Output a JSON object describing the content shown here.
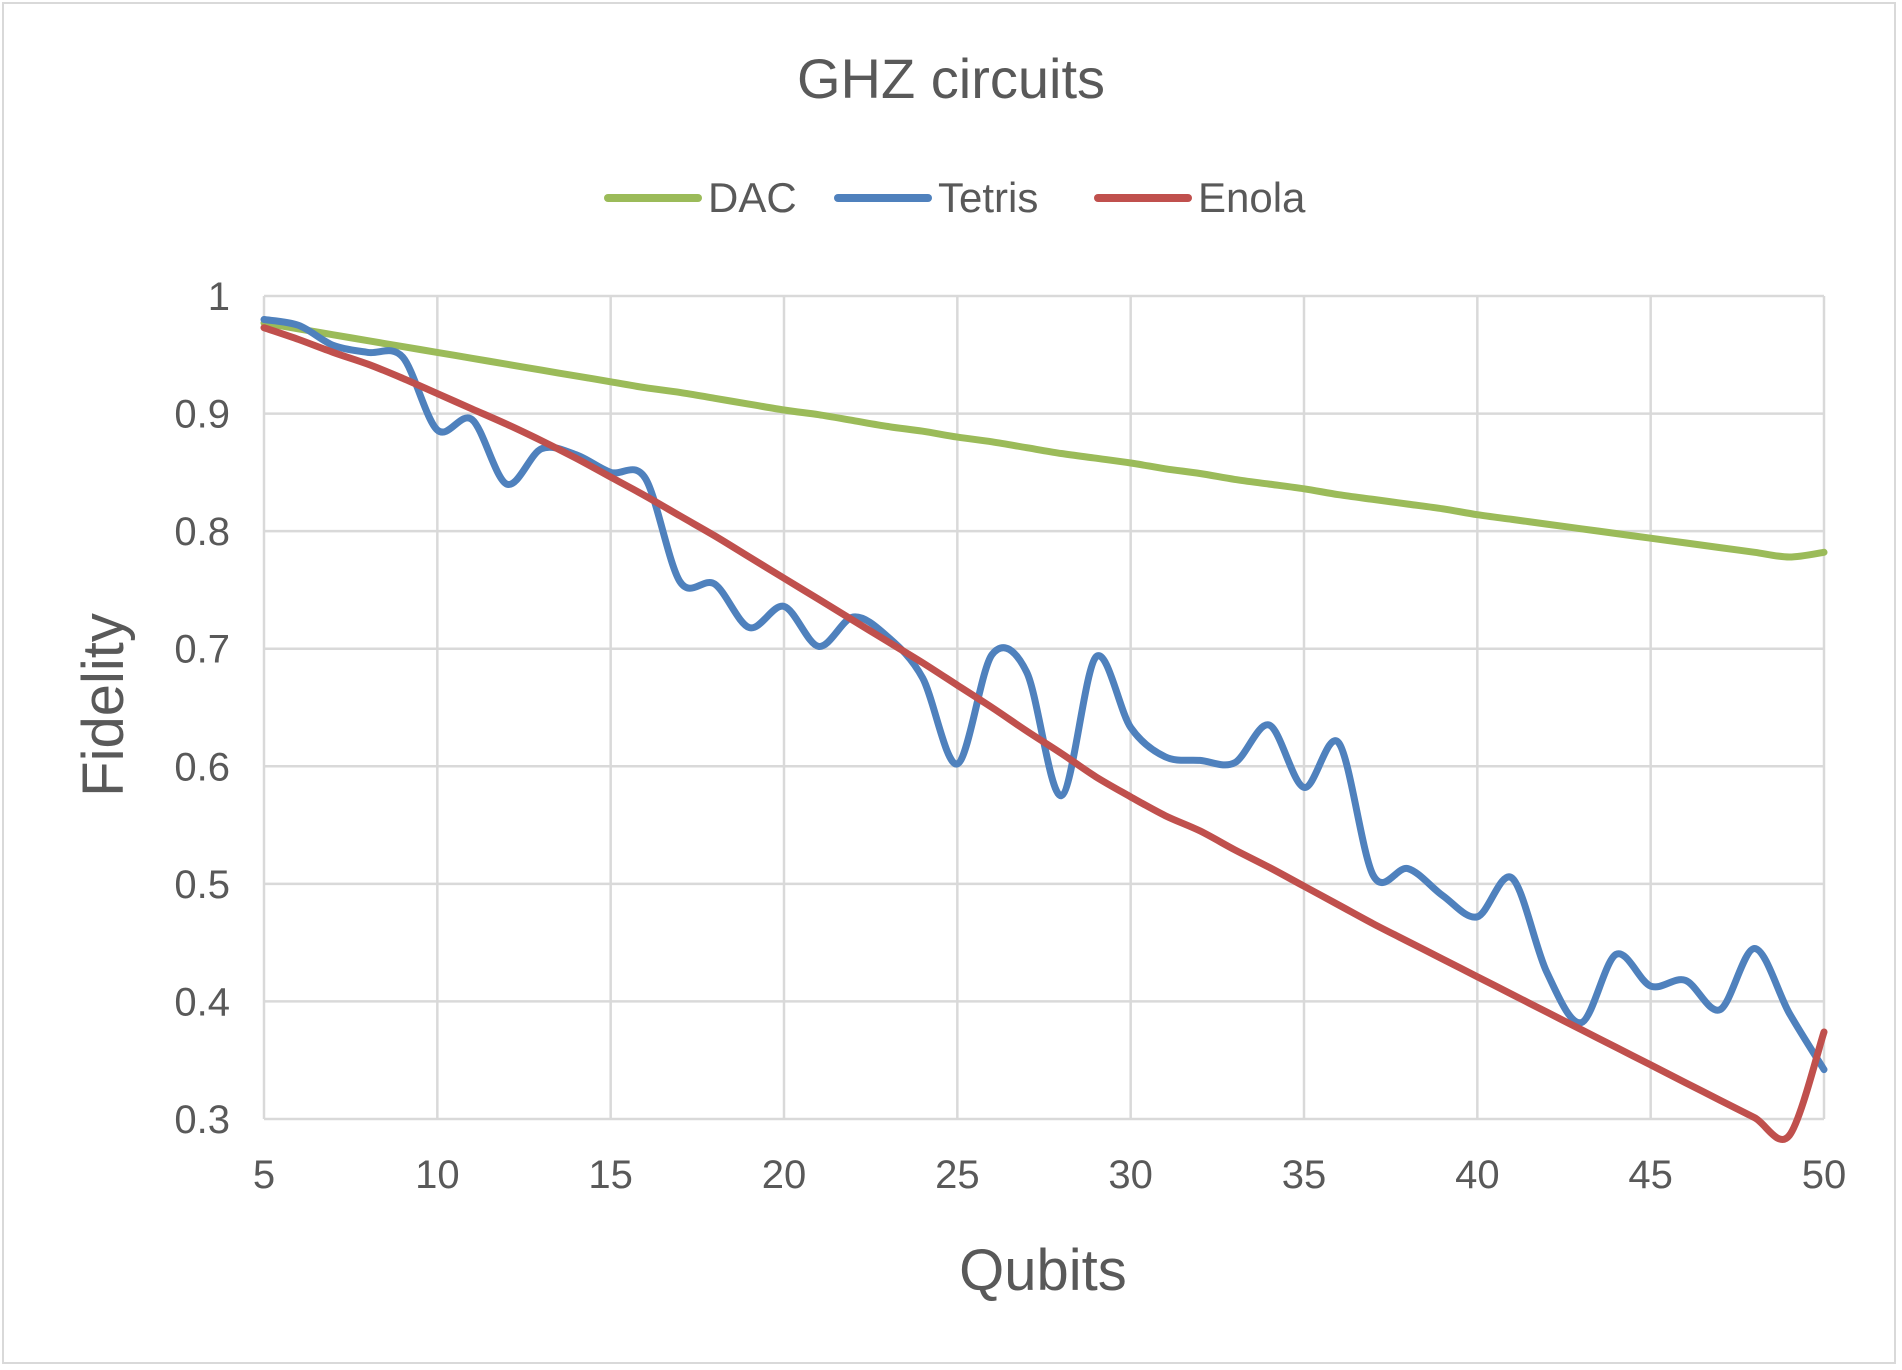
{
  "chart_data": {
    "type": "line",
    "title": "GHZ circuits",
    "xlabel": "Qubits",
    "ylabel": "Fidelity",
    "xlim": [
      5,
      50
    ],
    "ylim": [
      0.3,
      1
    ],
    "x_ticks": [
      "5",
      "10",
      "15",
      "20",
      "25",
      "30",
      "35",
      "40",
      "45",
      "50"
    ],
    "y_ticks": [
      "0.3",
      "0.4",
      "0.5",
      "0.6",
      "0.7",
      "0.8",
      "0.9",
      "1"
    ],
    "grid": true,
    "legend_position": "top",
    "x": [
      5,
      6,
      7,
      8,
      9,
      10,
      11,
      12,
      13,
      14,
      15,
      16,
      17,
      18,
      19,
      20,
      21,
      22,
      23,
      24,
      25,
      26,
      27,
      28,
      29,
      30,
      31,
      32,
      33,
      34,
      35,
      36,
      37,
      38,
      39,
      40,
      41,
      42,
      43,
      44,
      45,
      46,
      47,
      48,
      49,
      50
    ],
    "series": [
      {
        "name": "DAC",
        "color": "#9bbb59",
        "values": [
          0.977,
          0.972,
          0.967,
          0.962,
          0.957,
          0.952,
          0.947,
          0.942,
          0.937,
          0.932,
          0.927,
          0.922,
          0.918,
          0.913,
          0.908,
          0.903,
          0.899,
          0.894,
          0.889,
          0.885,
          0.88,
          0.876,
          0.871,
          0.866,
          0.862,
          0.858,
          0.853,
          0.849,
          0.844,
          0.84,
          0.836,
          0.831,
          0.827,
          0.823,
          0.819,
          0.814,
          0.81,
          0.806,
          0.802,
          0.798,
          0.794,
          0.79,
          0.786,
          0.782,
          0.778,
          0.782
        ]
      },
      {
        "name": "Tetris",
        "color": "#4f81bd",
        "values": [
          0.98,
          0.975,
          0.958,
          0.952,
          0.948,
          0.886,
          0.895,
          0.84,
          0.87,
          0.865,
          0.85,
          0.845,
          0.757,
          0.755,
          0.718,
          0.736,
          0.702,
          0.727,
          0.71,
          0.675,
          0.602,
          0.695,
          0.68,
          0.575,
          0.693,
          0.633,
          0.608,
          0.605,
          0.603,
          0.635,
          0.582,
          0.62,
          0.507,
          0.513,
          0.49,
          0.472,
          0.505,
          0.425,
          0.382,
          0.44,
          0.413,
          0.418,
          0.393,
          0.445,
          0.39,
          0.342
        ]
      },
      {
        "name": "Enola",
        "color": "#c0504d",
        "values": [
          0.973,
          0.963,
          0.952,
          0.942,
          0.93,
          0.917,
          0.904,
          0.891,
          0.877,
          0.862,
          0.846,
          0.83,
          0.813,
          0.796,
          0.778,
          0.76,
          0.742,
          0.724,
          0.706,
          0.688,
          0.669,
          0.65,
          0.63,
          0.611,
          0.591,
          0.574,
          0.558,
          0.545,
          0.529,
          0.514,
          0.498,
          0.482,
          0.466,
          0.451,
          0.436,
          0.421,
          0.406,
          0.391,
          0.376,
          0.361,
          0.346,
          0.331,
          0.316,
          0.301,
          0.286,
          0.374
        ]
      }
    ]
  }
}
